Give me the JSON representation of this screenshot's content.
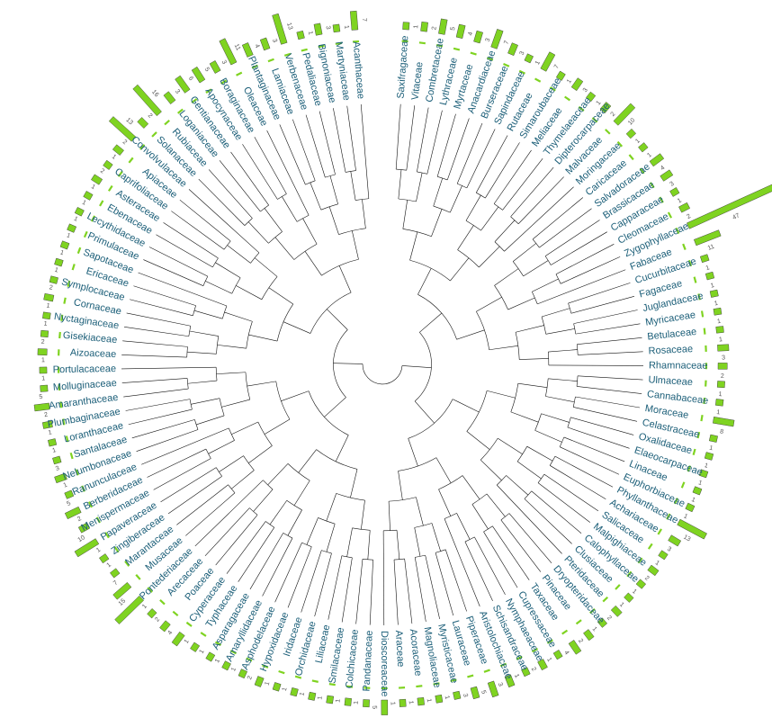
{
  "families": [
    {
      "name": "Saxifragaceae",
      "count": 1
    },
    {
      "name": "Vitaceae",
      "count": 2
    },
    {
      "name": "Combretaceae",
      "count": 5
    },
    {
      "name": "Lythraceae",
      "count": 4
    },
    {
      "name": "Myrtaceae",
      "count": 3
    },
    {
      "name": "Anacardiaceae",
      "count": 7
    },
    {
      "name": "Burseraceae",
      "count": 3
    },
    {
      "name": "Sapindaceae",
      "count": 1
    },
    {
      "name": "Rutaceae",
      "count": 7
    },
    {
      "name": "Simaroubaceae",
      "count": 1
    },
    {
      "name": "Meliaceae",
      "count": 3
    },
    {
      "name": "Thymelaeaceae",
      "count": 1
    },
    {
      "name": "Dipterocarpaceae",
      "count": 2
    },
    {
      "name": "Malvaceae",
      "count": 10
    },
    {
      "name": "Moringaceae",
      "count": 1
    },
    {
      "name": "Caricaceae",
      "count": 1
    },
    {
      "name": "Salvadoraceae",
      "count": 4
    },
    {
      "name": "Brassicaceae",
      "count": 3
    },
    {
      "name": "Capparaceae",
      "count": 1
    },
    {
      "name": "Cleomaceae",
      "count": 2
    },
    {
      "name": "Zygophyllaceae",
      "count": 47
    },
    {
      "name": "Fabaceae",
      "count": 11
    },
    {
      "name": "Cucurbitaceae",
      "count": 1
    },
    {
      "name": "Fagaceae",
      "count": 1
    },
    {
      "name": "Juglandaceae",
      "count": 1
    },
    {
      "name": "Myricaceae",
      "count": 1
    },
    {
      "name": "Betulaceae",
      "count": 1
    },
    {
      "name": "Rosaceae",
      "count": 3
    },
    {
      "name": "Rhamnaceae",
      "count": 2
    },
    {
      "name": "Ulmaceae",
      "count": 1
    },
    {
      "name": "Cannabaceae",
      "count": 1
    },
    {
      "name": "Moraceae",
      "count": 8
    },
    {
      "name": "Celastraceae",
      "count": 1
    },
    {
      "name": "Oxalidaceae",
      "count": 1
    },
    {
      "name": "Elaeocarpaceae",
      "count": 1
    },
    {
      "name": "Linaceae",
      "count": 1
    },
    {
      "name": "Euphorbiaceae",
      "count": 1
    },
    {
      "name": "Phyllanthaceae",
      "count": 13
    },
    {
      "name": "Achariaceae",
      "count": 3
    },
    {
      "name": "Salicaceae",
      "count": 1
    },
    {
      "name": "Malpighiaceae",
      "count": 2
    },
    {
      "name": "Calophyllaceae",
      "count": 1
    },
    {
      "name": "Clusiaceae",
      "count": 1
    },
    {
      "name": "Pteridaceae",
      "count": 2
    },
    {
      "name": "Dryopteridaceae",
      "count": 1
    },
    {
      "name": "Pinaceae",
      "count": 2
    },
    {
      "name": "Taxaceae",
      "count": 4
    },
    {
      "name": "Cupressaceae",
      "count": 1
    },
    {
      "name": "Nymphaeaceae",
      "count": 2
    },
    {
      "name": "Schisandraceae",
      "count": 1
    },
    {
      "name": "Aristolochiaceae",
      "count": 3
    },
    {
      "name": "Piperaceae",
      "count": 5
    },
    {
      "name": "Lauraceae",
      "count": 3
    },
    {
      "name": "Myristicaceae",
      "count": 1
    },
    {
      "name": "Magnoliaceae",
      "count": 1
    },
    {
      "name": "Acoraceae",
      "count": 1
    },
    {
      "name": "Araceae",
      "count": 1
    },
    {
      "name": "Dioscoreaceae",
      "count": 5
    },
    {
      "name": "Pandanaceae",
      "count": 1
    },
    {
      "name": "Colchicaceae",
      "count": 1
    },
    {
      "name": "Smilacaceae",
      "count": 1
    },
    {
      "name": "Liliaceae",
      "count": 1
    },
    {
      "name": "Orchidaceae",
      "count": 1
    },
    {
      "name": "Iridaceae",
      "count": 1
    },
    {
      "name": "Hypoxidaceae",
      "count": 2
    },
    {
      "name": "Asphodelaceae",
      "count": 1
    },
    {
      "name": "Amaryllidaceae",
      "count": 1
    },
    {
      "name": "Asparagaceae",
      "count": 1
    },
    {
      "name": "Typhaceae",
      "count": 1
    },
    {
      "name": "Cyperaceae",
      "count": 4
    },
    {
      "name": "Poaceae",
      "count": 2
    },
    {
      "name": "Arecaceae",
      "count": 1
    },
    {
      "name": "Pontederiaceae",
      "count": 15
    },
    {
      "name": "Musaceae",
      "count": 7
    },
    {
      "name": "Marantaceae",
      "count": 1
    },
    {
      "name": "Zingiberaceae",
      "count": 1
    },
    {
      "name": "Papaveraceae",
      "count": 10
    },
    {
      "name": "Menispermaceae",
      "count": 2
    },
    {
      "name": "Berberidaceae",
      "count": 5
    },
    {
      "name": "Ranunculaceae",
      "count": 1
    },
    {
      "name": "Nelumbonaceae",
      "count": 3
    },
    {
      "name": "Santalaceae",
      "count": 1
    },
    {
      "name": "Loranthaceae",
      "count": 1
    },
    {
      "name": "Plumbaginaceae",
      "count": 2
    },
    {
      "name": "Amaranthaceae",
      "count": 5
    },
    {
      "name": "Molluginaceae",
      "count": 1
    },
    {
      "name": "Portulacaceae",
      "count": 1
    },
    {
      "name": "Aizoaceae",
      "count": 2
    },
    {
      "name": "Gisekiaceae",
      "count": 1
    },
    {
      "name": "Nyctaginaceae",
      "count": 1
    },
    {
      "name": "Cornaceae",
      "count": 2
    },
    {
      "name": "Symplocaceae",
      "count": 1
    },
    {
      "name": "Ericaceae",
      "count": 1
    },
    {
      "name": "Sapotaceae",
      "count": 1
    },
    {
      "name": "Primulaceae",
      "count": 1
    },
    {
      "name": "Lecythidaceae",
      "count": 1
    },
    {
      "name": "Ebenaceae",
      "count": 1
    },
    {
      "name": "Asteraceae",
      "count": 2
    },
    {
      "name": "Caprifoliaceae",
      "count": 1
    },
    {
      "name": "Apiaceae",
      "count": 2
    },
    {
      "name": "Convolvulaceae",
      "count": 13
    },
    {
      "name": "Solanaceae",
      "count": 2
    },
    {
      "name": "Rubiaceae",
      "count": 16
    },
    {
      "name": "Loganiaceae",
      "count": 3
    },
    {
      "name": "Gentianaceae",
      "count": 6
    },
    {
      "name": "Apocynaceae",
      "count": 5
    },
    {
      "name": "Boraginaceae",
      "count": 3
    },
    {
      "name": "Oleaceae",
      "count": 11
    },
    {
      "name": "Plantaginaceae",
      "count": 4
    },
    {
      "name": "Lamiaceae",
      "count": 3
    },
    {
      "name": "Verbenaceae",
      "count": 13
    },
    {
      "name": "Pedaliaceae",
      "count": 1
    },
    {
      "name": "Bignoniaceae",
      "count": 3
    },
    {
      "name": "Martyniaceae",
      "count": 1
    },
    {
      "name": "Acanthaceae",
      "count": 7
    }
  ],
  "colors": {
    "label": "#1b5e78",
    "branch": "#111111",
    "bar": "#7fd321",
    "bar_stroke": "#333333",
    "count": "#555555"
  }
}
